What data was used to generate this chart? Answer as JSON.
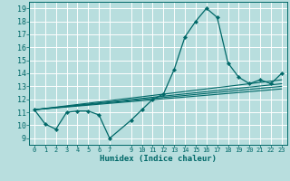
{
  "xlabel": "Humidex (Indice chaleur)",
  "background_color": "#b8dede",
  "grid_color": "#ffffff",
  "line_color": "#006868",
  "xlim": [
    -0.5,
    23.5
  ],
  "ylim": [
    8.5,
    19.5
  ],
  "xticks": [
    0,
    1,
    2,
    3,
    4,
    5,
    6,
    7,
    9,
    10,
    11,
    12,
    13,
    14,
    15,
    16,
    17,
    18,
    19,
    20,
    21,
    22,
    23
  ],
  "xtick_labels": [
    "0",
    "1",
    "2",
    "3",
    "4",
    "5",
    "6",
    "7",
    "9",
    "10",
    "11",
    "12",
    "13",
    "14",
    "15",
    "16",
    "17",
    "18",
    "19",
    "20",
    "21",
    "22",
    "23"
  ],
  "yticks": [
    9,
    10,
    11,
    12,
    13,
    14,
    15,
    16,
    17,
    18,
    19
  ],
  "main_series": [
    [
      0,
      11.2
    ],
    [
      1,
      10.1
    ],
    [
      2,
      9.7
    ],
    [
      3,
      11.0
    ],
    [
      4,
      11.1
    ],
    [
      5,
      11.1
    ],
    [
      6,
      10.8
    ],
    [
      7,
      9.0
    ],
    [
      9,
      10.4
    ],
    [
      10,
      11.2
    ],
    [
      11,
      12.0
    ],
    [
      12,
      12.4
    ],
    [
      13,
      14.3
    ],
    [
      14,
      16.8
    ],
    [
      15,
      18.0
    ],
    [
      16,
      19.0
    ],
    [
      17,
      18.3
    ],
    [
      18,
      14.8
    ],
    [
      19,
      13.7
    ],
    [
      20,
      13.2
    ],
    [
      21,
      13.5
    ],
    [
      22,
      13.2
    ],
    [
      23,
      14.0
    ]
  ],
  "extra_lines": [
    [
      [
        0,
        11.2
      ],
      [
        23,
        12.8
      ]
    ],
    [
      [
        0,
        11.2
      ],
      [
        23,
        13.0
      ]
    ],
    [
      [
        0,
        11.2
      ],
      [
        23,
        13.2
      ]
    ],
    [
      [
        0,
        11.2
      ],
      [
        23,
        13.5
      ]
    ]
  ]
}
